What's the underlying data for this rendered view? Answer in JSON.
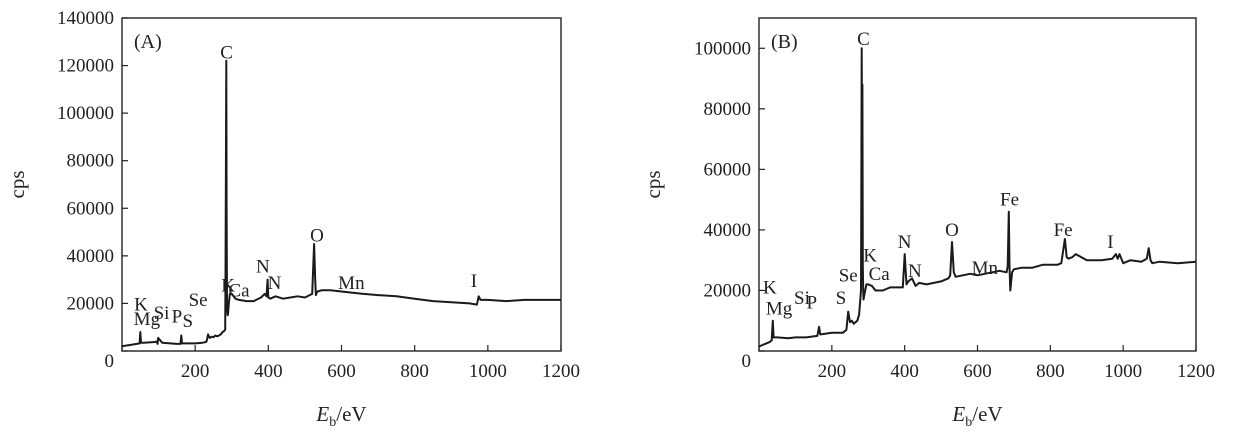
{
  "chart_data": [
    {
      "type": "line",
      "panel_label": "(A)",
      "xlabel_main": "E",
      "xlabel_sub": "b",
      "xlabel_unit": "/eV",
      "ylabel": "cps",
      "xlim": [
        0,
        1200
      ],
      "ylim": [
        0,
        140000
      ],
      "xticks": [
        0,
        200,
        400,
        600,
        800,
        1000,
        1200
      ],
      "yticks": [
        0,
        20000,
        40000,
        60000,
        80000,
        100000,
        120000,
        140000
      ],
      "xtick_labels": [
        "0",
        "200",
        "400",
        "600",
        "800",
        "1000",
        "1200"
      ],
      "ytick_labels": [
        "",
        "20000",
        "40000",
        "60000",
        "80000",
        "100000",
        "120000",
        "140000"
      ],
      "origin_label": "0",
      "series": [
        {
          "x": [
            0,
            20,
            40,
            48,
            50,
            52,
            60,
            90,
            95,
            97,
            99,
            110,
            150,
            160,
            162,
            164,
            200,
            220,
            230,
            232,
            235,
            240,
            245,
            250,
            255,
            260,
            265,
            270,
            275,
            280,
            282,
            283,
            284,
            285,
            286,
            287,
            288,
            289,
            290,
            292,
            295,
            300,
            310,
            320,
            340,
            360,
            380,
            390,
            395,
            398,
            400,
            405,
            420,
            440,
            460,
            480,
            500,
            520,
            525,
            528,
            530,
            532,
            535,
            545,
            570,
            600,
            630,
            660,
            700,
            750,
            800,
            850,
            900,
            950,
            970,
            975,
            980,
            990,
            1000,
            1050,
            1100,
            1150,
            1200
          ],
          "y": [
            2000,
            2500,
            3000,
            3200,
            8000,
            3500,
            3500,
            3800,
            4000,
            3000,
            5500,
            3500,
            3000,
            3000,
            6500,
            3200,
            3200,
            3500,
            3800,
            4500,
            7000,
            5500,
            6000,
            5800,
            6500,
            6200,
            6500,
            7000,
            8000,
            8500,
            9000,
            30000,
            75000,
            122000,
            60000,
            20000,
            16000,
            15000,
            16000,
            20000,
            24000,
            24000,
            22000,
            21500,
            21000,
            21000,
            22500,
            24000,
            23000,
            30000,
            22500,
            22000,
            23000,
            22000,
            22500,
            23000,
            22500,
            24000,
            45000,
            30000,
            23500,
            24500,
            25000,
            25500,
            25500,
            25000,
            24500,
            24000,
            23500,
            23000,
            22000,
            21000,
            20500,
            20000,
            19500,
            23000,
            21500,
            21500,
            21500,
            21000,
            21500,
            21500,
            21500
          ]
        }
      ],
      "annotations": [
        {
          "text": "C",
          "x": 286,
          "y": 123000
        },
        {
          "text": "O",
          "x": 533,
          "y": 46000
        },
        {
          "text": "K",
          "x": 52,
          "y": 17000
        },
        {
          "text": "Mg",
          "x": 68,
          "y": 11000
        },
        {
          "text": "Si",
          "x": 108,
          "y": 13500
        },
        {
          "text": "P",
          "x": 150,
          "y": 12000
        },
        {
          "text": "S",
          "x": 180,
          "y": 10000
        },
        {
          "text": "Se",
          "x": 208,
          "y": 19000
        },
        {
          "text": "K",
          "x": 290,
          "y": 25000
        },
        {
          "text": "Ca",
          "x": 320,
          "y": 23000
        },
        {
          "text": "N",
          "x": 385,
          "y": 33000
        },
        {
          "text": "N",
          "x": 417,
          "y": 26000
        },
        {
          "text": "Mn",
          "x": 627,
          "y": 26000
        },
        {
          "text": "I",
          "x": 962,
          "y": 27000
        }
      ]
    },
    {
      "type": "line",
      "panel_label": "(B)",
      "xlabel_main": "E",
      "xlabel_sub": "b",
      "xlabel_unit": "/eV",
      "ylabel": "cps",
      "xlim": [
        0,
        1200
      ],
      "ylim": [
        0,
        110000
      ],
      "xticks": [
        0,
        200,
        400,
        600,
        800,
        1000,
        1200
      ],
      "yticks": [
        0,
        20000,
        40000,
        60000,
        80000,
        100000
      ],
      "xtick_labels": [
        "0",
        "200",
        "400",
        "600",
        "800",
        "1000",
        "1200"
      ],
      "ytick_labels": [
        "",
        "20000",
        "40000",
        "60000",
        "80000",
        "100000"
      ],
      "origin_label": "0",
      "series": [
        {
          "x": [
            0,
            20,
            30,
            35,
            38,
            40,
            50,
            80,
            100,
            130,
            160,
            165,
            168,
            170,
            200,
            230,
            240,
            245,
            250,
            255,
            260,
            265,
            270,
            275,
            280,
            281,
            282,
            283,
            284,
            285,
            286,
            287,
            290,
            295,
            300,
            310,
            320,
            340,
            360,
            380,
            395,
            400,
            405,
            410,
            420,
            430,
            440,
            460,
            480,
            500,
            520,
            525,
            530,
            535,
            540,
            560,
            580,
            600,
            620,
            640,
            660,
            680,
            683,
            686,
            688,
            690,
            695,
            700,
            720,
            750,
            780,
            800,
            820,
            830,
            835,
            840,
            845,
            850,
            860,
            870,
            900,
            940,
            970,
            980,
            985,
            990,
            1000,
            1020,
            1050,
            1065,
            1070,
            1075,
            1080,
            1100,
            1150,
            1200
          ],
          "y": [
            1500,
            2500,
            3000,
            3500,
            10000,
            4500,
            4500,
            4200,
            4500,
            4500,
            5000,
            8000,
            5500,
            5500,
            6000,
            6000,
            7000,
            13000,
            9500,
            10000,
            9000,
            9500,
            10000,
            12000,
            20000,
            50000,
            100000,
            60000,
            88000,
            28000,
            20000,
            17000,
            19000,
            22000,
            22000,
            21500,
            20000,
            20000,
            21000,
            21000,
            21000,
            32000,
            22000,
            23000,
            24000,
            21500,
            22500,
            22000,
            22500,
            23000,
            24000,
            25000,
            36000,
            26000,
            24500,
            25000,
            25500,
            25000,
            25500,
            26000,
            26500,
            26000,
            28000,
            46000,
            28000,
            20000,
            26000,
            27000,
            27500,
            27500,
            28500,
            28500,
            28500,
            29000,
            33000,
            37000,
            31000,
            30500,
            31000,
            32000,
            30000,
            30000,
            30500,
            32000,
            30500,
            32000,
            29000,
            30000,
            29500,
            30500,
            34000,
            30000,
            29000,
            29500,
            29000,
            29500
          ]
        }
      ],
      "annotations": [
        {
          "text": "C",
          "x": 287,
          "y": 101000
        },
        {
          "text": "Fe",
          "x": 688,
          "y": 48000
        },
        {
          "text": "Fe",
          "x": 835,
          "y": 38000
        },
        {
          "text": "O",
          "x": 530,
          "y": 38000
        },
        {
          "text": "N",
          "x": 400,
          "y": 34000
        },
        {
          "text": "N",
          "x": 428,
          "y": 24500
        },
        {
          "text": "K",
          "x": 305,
          "y": 29500
        },
        {
          "text": "Ca",
          "x": 330,
          "y": 23500
        },
        {
          "text": "Mn",
          "x": 620,
          "y": 25500
        },
        {
          "text": "I",
          "x": 965,
          "y": 34000
        },
        {
          "text": "Se",
          "x": 245,
          "y": 23000
        },
        {
          "text": "S",
          "x": 225,
          "y": 15500
        },
        {
          "text": "K",
          "x": 30,
          "y": 19000
        },
        {
          "text": "Mg",
          "x": 55,
          "y": 12000
        },
        {
          "text": "Si",
          "x": 118,
          "y": 15500
        },
        {
          "text": "P",
          "x": 145,
          "y": 14000
        }
      ]
    }
  ]
}
